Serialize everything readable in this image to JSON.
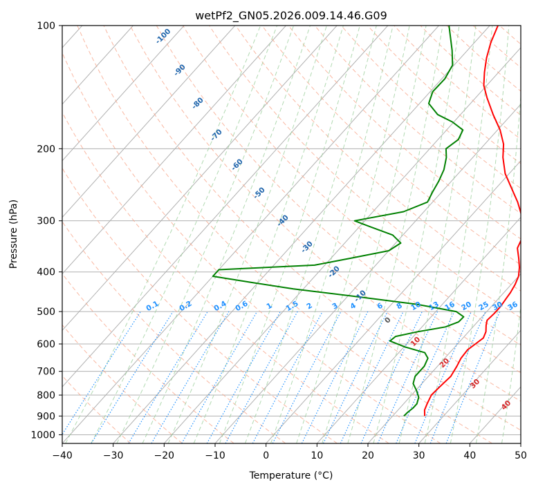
{
  "chart_data": {
    "type": "skew-t line",
    "title": "wetPf2_GN05.2026.009.14.46.G09",
    "xlabel": "Temperature (°C)",
    "ylabel": "Pressure (hPa)",
    "xlim": [
      -40,
      50
    ],
    "ylim": [
      1050,
      100
    ],
    "x_ticks": [
      -40,
      -30,
      -20,
      -10,
      0,
      10,
      20,
      30,
      40,
      50
    ],
    "x_tick_labels": [
      "−40",
      "−30",
      "−20",
      "−10",
      "0",
      "10",
      "20",
      "30",
      "40",
      "50"
    ],
    "y_ticks": [
      100,
      200,
      300,
      400,
      500,
      600,
      700,
      800,
      900,
      1000
    ],
    "y_tick_labels": [
      "100",
      "200",
      "300",
      "400",
      "500",
      "600",
      "700",
      "800",
      "900",
      "1000"
    ],
    "isotherm_labels": [
      "-100",
      "-90",
      "-80",
      "-70",
      "-60",
      "-50",
      "-40",
      "-30",
      "-20",
      "-10",
      "0"
    ],
    "moist_adiabat_labels": [
      "10",
      "20",
      "30",
      "40"
    ],
    "mixing_ratio_labels": [
      "0.1",
      "0.2",
      "0.4",
      "0.6",
      "1",
      "1.5",
      "2",
      "3",
      "4",
      "6",
      "8",
      "10",
      "13",
      "16",
      "20",
      "25",
      "30",
      "36"
    ],
    "series": [
      {
        "name": "Temperature",
        "color": "#ff0000",
        "points": [
          [
            900,
            26.3
          ],
          [
            870,
            25.2
          ],
          [
            840,
            24.6
          ],
          [
            800,
            23.9
          ],
          [
            760,
            24.1
          ],
          [
            720,
            24.4
          ],
          [
            680,
            23.8
          ],
          [
            650,
            23.2
          ],
          [
            620,
            23.0
          ],
          [
            600,
            23.5
          ],
          [
            580,
            24.0
          ],
          [
            560,
            23.4
          ],
          [
            540,
            22.3
          ],
          [
            525,
            21.6
          ],
          [
            505,
            21.8
          ],
          [
            485,
            21.8
          ],
          [
            465,
            21.5
          ],
          [
            450,
            21.3
          ],
          [
            430,
            20.8
          ],
          [
            410,
            20.0
          ],
          [
            390,
            18.6
          ],
          [
            370,
            16.8
          ],
          [
            350,
            14.8
          ],
          [
            330,
            13.9
          ],
          [
            300,
            11.1
          ],
          [
            270,
            6.7
          ],
          [
            250,
            3.1
          ],
          [
            230,
            -0.8
          ],
          [
            210,
            -4.1
          ],
          [
            195,
            -6.3
          ],
          [
            180,
            -9.5
          ],
          [
            165,
            -13.6
          ],
          [
            150,
            -17.8
          ],
          [
            140,
            -20.6
          ],
          [
            130,
            -22.8
          ],
          [
            120,
            -24.9
          ],
          [
            110,
            -26.8
          ],
          [
            100,
            -28.4
          ]
        ]
      },
      {
        "name": "Dewpoint",
        "color": "#008000",
        "points": [
          [
            900,
            22.2
          ],
          [
            880,
            22.3
          ],
          [
            860,
            22.6
          ],
          [
            840,
            22.6
          ],
          [
            810,
            21.8
          ],
          [
            780,
            20.2
          ],
          [
            750,
            18.3
          ],
          [
            720,
            17.4
          ],
          [
            680,
            17.4
          ],
          [
            650,
            16.7
          ],
          [
            630,
            15.1
          ],
          [
            610,
            10.2
          ],
          [
            590,
            6.2
          ],
          [
            575,
            6.5
          ],
          [
            560,
            10.0
          ],
          [
            545,
            14.6
          ],
          [
            530,
            16.3
          ],
          [
            515,
            16.4
          ],
          [
            500,
            14.0
          ],
          [
            480,
            5.0
          ],
          [
            460,
            -8.0
          ],
          [
            440,
            -22.0
          ],
          [
            425,
            -31.0
          ],
          [
            410,
            -40.0
          ],
          [
            395,
            -40.0
          ],
          [
            385,
            -22.0
          ],
          [
            370,
            -16.0
          ],
          [
            355,
            -10.0
          ],
          [
            340,
            -9.0
          ],
          [
            325,
            -12.0
          ],
          [
            310,
            -18.0
          ],
          [
            300,
            -22.0
          ],
          [
            285,
            -14.0
          ],
          [
            270,
            -11.0
          ],
          [
            255,
            -11.8
          ],
          [
            240,
            -12.5
          ],
          [
            225,
            -13.5
          ],
          [
            210,
            -15.2
          ],
          [
            200,
            -16.8
          ],
          [
            190,
            -16.0
          ],
          [
            180,
            -16.8
          ],
          [
            172,
            -20.3
          ],
          [
            165,
            -24.5
          ],
          [
            155,
            -28.2
          ],
          [
            145,
            -29.5
          ],
          [
            135,
            -29.4
          ],
          [
            125,
            -30.3
          ],
          [
            115,
            -33.0
          ],
          [
            100,
            -38.0
          ]
        ]
      }
    ]
  }
}
